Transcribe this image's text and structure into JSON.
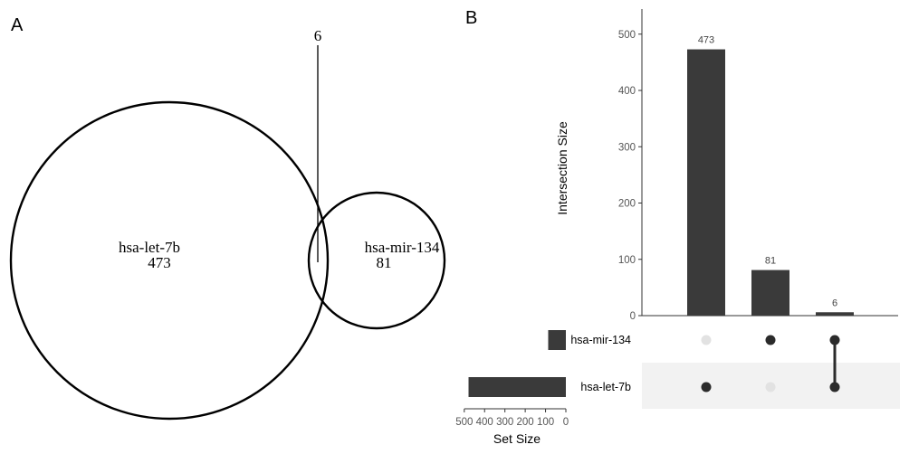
{
  "panels": {
    "a_label": "A",
    "b_label": "B"
  },
  "chart_data": [
    {
      "type": "venn",
      "sets": [
        {
          "name": "hsa-let-7b",
          "unique_count": "473"
        },
        {
          "name": "hsa-mir-134",
          "unique_count": "81"
        }
      ],
      "intersection": "6"
    },
    {
      "type": "bar",
      "subtype": "upset",
      "ylabel": "Intersection Size",
      "ylim": [
        0,
        550
      ],
      "yticks": [
        0,
        100,
        200,
        300,
        400,
        500
      ],
      "intersections": [
        {
          "value": 473,
          "sets": [
            "hsa-let-7b"
          ]
        },
        {
          "value": 81,
          "sets": [
            "hsa-mir-134"
          ]
        },
        {
          "value": 6,
          "sets": [
            "hsa-mir-134",
            "hsa-let-7b"
          ]
        }
      ],
      "set_sizes": {
        "xlabel": "Set Size",
        "xticks": [
          500,
          400,
          300,
          200,
          100,
          0
        ],
        "sets": [
          {
            "name": "hsa-mir-134",
            "size": 87
          },
          {
            "name": "hsa-let-7b",
            "size": 479
          }
        ]
      },
      "colors": {
        "bar": "#3a3a3a",
        "dot_active": "#2b2b2b",
        "dot_inactive": "#e2e2e2",
        "row_shade": "#f2f2f2"
      }
    }
  ]
}
